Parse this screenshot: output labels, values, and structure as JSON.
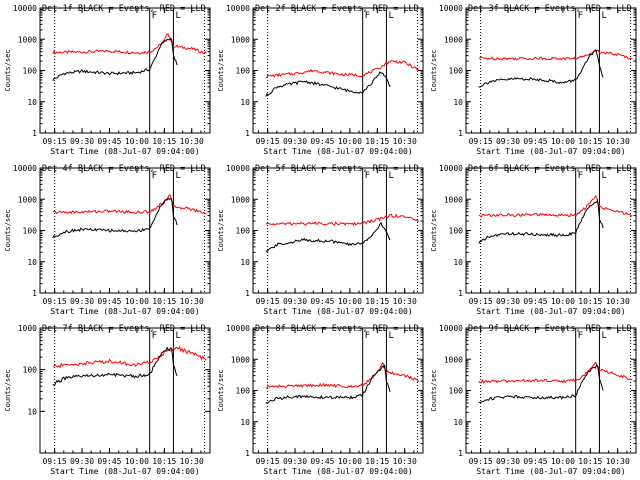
{
  "chart_data": [
    {
      "type": "line",
      "title": "Det 1f BLACK = Events, RED = LLD",
      "xlabel": "Start Time (08-Jul-07 09:04:00)",
      "ylabel": "Counts/sec",
      "xlim": [
        "09:07",
        "10:40"
      ],
      "ylim": [
        1,
        10000
      ],
      "yscale": "log",
      "xticks": [
        "09:15",
        "09:30",
        "09:45",
        "10:00",
        "10:15",
        "10:30"
      ],
      "yticks": [
        "1",
        "10",
        "100",
        "1000",
        "10000"
      ],
      "markers": [
        {
          "x": "09:15",
          "style": "dotted"
        },
        {
          "x": "10:07",
          "style": "solid",
          "label": "F"
        },
        {
          "x": "10:20",
          "style": "solid",
          "label": "L"
        },
        {
          "x": "10:37",
          "style": "dotted"
        }
      ],
      "series": [
        {
          "color": "#ff0000",
          "x": [
            "09:14",
            "09:30",
            "09:45",
            "10:00",
            "10:07",
            "10:12",
            "10:15",
            "10:17",
            "10:20",
            "10:30",
            "10:38"
          ],
          "values": [
            380,
            390,
            420,
            370,
            390,
            600,
            900,
            1600,
            600,
            500,
            350
          ]
        },
        {
          "color": "#000000",
          "x": [
            "09:14",
            "09:20",
            "09:30",
            "09:45",
            "10:00",
            "10:07",
            "10:10",
            "10:13",
            "10:16",
            "10:19",
            "10:20",
            "10:22"
          ],
          "values": [
            50,
            80,
            95,
            80,
            85,
            110,
            250,
            650,
            900,
            1100,
            300,
            150
          ]
        }
      ]
    },
    {
      "type": "line",
      "title": "Det 2f BLACK = Events, RED = LLD",
      "xlabel": "Start Time (08-Jul-07 09:04:00)",
      "ylabel": "Counts/sec",
      "xlim": [
        "09:07",
        "10:40"
      ],
      "ylim": [
        1,
        10000
      ],
      "yscale": "log",
      "xticks": [
        "09:15",
        "09:30",
        "09:45",
        "10:00",
        "10:15",
        "10:30"
      ],
      "yticks": [
        "1",
        "10",
        "100",
        "1000",
        "10000"
      ],
      "markers": [
        {
          "x": "09:15",
          "style": "dotted"
        },
        {
          "x": "10:07",
          "style": "solid",
          "label": "F"
        },
        {
          "x": "10:20",
          "style": "solid",
          "label": "L"
        },
        {
          "x": "10:37",
          "style": "dotted"
        }
      ],
      "series": [
        {
          "color": "#ff0000",
          "x": [
            "09:14",
            "09:30",
            "09:40",
            "09:55",
            "10:07",
            "10:15",
            "10:22",
            "10:30",
            "10:38"
          ],
          "values": [
            65,
            80,
            100,
            75,
            70,
            110,
            200,
            180,
            100
          ]
        },
        {
          "color": "#000000",
          "x": [
            "09:14",
            "09:20",
            "09:35",
            "09:50",
            "10:00",
            "10:07",
            "10:12",
            "10:17",
            "10:20",
            "10:22"
          ],
          "values": [
            15,
            30,
            45,
            30,
            22,
            20,
            40,
            90,
            60,
            30
          ]
        }
      ]
    },
    {
      "type": "line",
      "title": "Det 3f BLACK = Events, RED = LLD",
      "xlabel": "Start Time (08-Jul-07 09:04:00)",
      "ylabel": "Counts/sec",
      "xlim": [
        "09:07",
        "10:40"
      ],
      "ylim": [
        1,
        10000
      ],
      "yscale": "log",
      "xticks": [
        "09:15",
        "09:30",
        "09:45",
        "10:00",
        "10:15",
        "10:30"
      ],
      "yticks": [
        "1",
        "10",
        "100",
        "1000",
        "10000"
      ],
      "markers": [
        {
          "x": "09:15",
          "style": "dotted"
        },
        {
          "x": "10:07",
          "style": "solid",
          "label": "F"
        },
        {
          "x": "10:20",
          "style": "solid",
          "label": "L"
        },
        {
          "x": "10:37",
          "style": "dotted"
        }
      ],
      "series": [
        {
          "color": "#ff0000",
          "x": [
            "09:14",
            "09:30",
            "09:45",
            "10:00",
            "10:07",
            "10:13",
            "10:17",
            "10:20",
            "10:30",
            "10:38"
          ],
          "values": [
            250,
            240,
            245,
            240,
            245,
            300,
            450,
            400,
            320,
            240
          ]
        },
        {
          "color": "#000000",
          "x": [
            "09:14",
            "09:20",
            "09:35",
            "09:50",
            "10:00",
            "10:07",
            "10:11",
            "10:15",
            "10:18",
            "10:20",
            "10:22"
          ],
          "values": [
            30,
            45,
            55,
            50,
            40,
            50,
            120,
            300,
            420,
            150,
            60
          ]
        }
      ]
    },
    {
      "type": "line",
      "title": "Det 4f BLACK = Events, RED = LLD",
      "xlabel": "Start Time (08-Jul-07 09:04:00)",
      "ylabel": "Counts/sec",
      "xlim": [
        "09:07",
        "10:40"
      ],
      "ylim": [
        1,
        10000
      ],
      "yscale": "log",
      "xticks": [
        "09:15",
        "09:30",
        "09:45",
        "10:00",
        "10:15",
        "10:30"
      ],
      "yticks": [
        "1",
        "10",
        "100",
        "1000",
        "10000"
      ],
      "markers": [
        {
          "x": "09:15",
          "style": "dotted"
        },
        {
          "x": "10:07",
          "style": "solid",
          "label": "F"
        },
        {
          "x": "10:20",
          "style": "solid",
          "label": "L"
        },
        {
          "x": "10:37",
          "style": "dotted"
        }
      ],
      "series": [
        {
          "color": "#ff0000",
          "x": [
            "09:14",
            "09:30",
            "09:45",
            "10:00",
            "10:07",
            "10:12",
            "10:15",
            "10:18",
            "10:20",
            "10:30",
            "10:38"
          ],
          "values": [
            380,
            390,
            420,
            380,
            400,
            600,
            900,
            1300,
            600,
            480,
            350
          ]
        },
        {
          "color": "#000000",
          "x": [
            "09:14",
            "09:20",
            "09:30",
            "09:45",
            "10:00",
            "10:07",
            "10:10",
            "10:13",
            "10:16",
            "10:19",
            "10:20",
            "10:22"
          ],
          "values": [
            60,
            90,
            110,
            100,
            95,
            120,
            250,
            650,
            900,
            1100,
            300,
            150
          ]
        }
      ]
    },
    {
      "type": "line",
      "title": "Det 5f BLACK = Events, RED = LLD",
      "xlabel": "Start Time (08-Jul-07 09:04:00)",
      "ylabel": "Counts/sec",
      "xlim": [
        "09:07",
        "10:40"
      ],
      "ylim": [
        1,
        10000
      ],
      "yscale": "log",
      "xticks": [
        "09:15",
        "09:30",
        "09:45",
        "10:00",
        "10:15",
        "10:30"
      ],
      "yticks": [
        "1",
        "10",
        "100",
        "1000",
        "10000"
      ],
      "markers": [
        {
          "x": "09:15",
          "style": "dotted"
        },
        {
          "x": "10:07",
          "style": "solid",
          "label": "F"
        },
        {
          "x": "10:20",
          "style": "solid",
          "label": "L"
        },
        {
          "x": "10:37",
          "style": "dotted"
        }
      ],
      "series": [
        {
          "color": "#ff0000",
          "x": [
            "09:14",
            "09:30",
            "09:45",
            "10:00",
            "10:07",
            "10:15",
            "10:22",
            "10:30",
            "10:38"
          ],
          "values": [
            160,
            165,
            170,
            160,
            170,
            220,
            300,
            280,
            200
          ]
        },
        {
          "color": "#000000",
          "x": [
            "09:14",
            "09:20",
            "09:35",
            "09:50",
            "10:00",
            "10:07",
            "10:12",
            "10:17",
            "10:20",
            "10:22"
          ],
          "values": [
            20,
            35,
            50,
            45,
            35,
            40,
            70,
            160,
            90,
            50
          ]
        }
      ]
    },
    {
      "type": "line",
      "title": "Det 6f BLACK = Events, RED = LLD",
      "xlabel": "Start Time (08-Jul-07 09:04:00)",
      "ylabel": "Counts/sec",
      "xlim": [
        "09:07",
        "10:40"
      ],
      "ylim": [
        1,
        10000
      ],
      "yscale": "log",
      "xticks": [
        "09:15",
        "09:30",
        "09:45",
        "10:00",
        "10:15",
        "10:30"
      ],
      "yticks": [
        "1",
        "10",
        "100",
        "1000",
        "10000"
      ],
      "markers": [
        {
          "x": "09:15",
          "style": "dotted"
        },
        {
          "x": "10:07",
          "style": "solid",
          "label": "F"
        },
        {
          "x": "10:20",
          "style": "solid",
          "label": "L"
        },
        {
          "x": "10:37",
          "style": "dotted"
        }
      ],
      "series": [
        {
          "color": "#ff0000",
          "x": [
            "09:14",
            "09:30",
            "09:45",
            "10:00",
            "10:07",
            "10:12",
            "10:15",
            "10:18",
            "10:20",
            "10:30",
            "10:38"
          ],
          "values": [
            300,
            310,
            320,
            300,
            320,
            500,
            800,
            1300,
            550,
            400,
            300
          ]
        },
        {
          "color": "#000000",
          "x": [
            "09:14",
            "09:20",
            "09:30",
            "09:45",
            "10:00",
            "10:07",
            "10:10",
            "10:13",
            "10:16",
            "10:19",
            "10:20",
            "10:22"
          ],
          "values": [
            40,
            65,
            80,
            75,
            70,
            85,
            200,
            450,
            700,
            900,
            250,
            120
          ]
        }
      ]
    },
    {
      "type": "line",
      "title": "Det 7f BLACK = Events, RED = LLD",
      "xlabel": "Start Time (08-Jul-07 09:04:00)",
      "ylabel": "Counts/sec",
      "xlim": [
        "09:07",
        "10:40"
      ],
      "ylim": [
        1,
        1000
      ],
      "yscale": "log",
      "xticks": [
        "09:15",
        "09:30",
        "09:45",
        "10:00",
        "10:15",
        "10:30"
      ],
      "yticks": [
        "10",
        "100",
        "1000"
      ],
      "markers": [
        {
          "x": "09:15",
          "style": "dotted"
        },
        {
          "x": "10:07",
          "style": "solid",
          "label": "F"
        },
        {
          "x": "10:20",
          "style": "solid",
          "label": "L"
        },
        {
          "x": "10:37",
          "style": "dotted"
        }
      ],
      "series": [
        {
          "color": "#ff0000",
          "x": [
            "09:14",
            "09:30",
            "09:45",
            "10:00",
            "10:07",
            "10:12",
            "10:17",
            "10:22",
            "10:30",
            "10:38"
          ],
          "values": [
            120,
            140,
            160,
            130,
            150,
            200,
            300,
            330,
            250,
            170
          ]
        },
        {
          "color": "#000000",
          "x": [
            "09:14",
            "09:20",
            "09:30",
            "09:45",
            "10:00",
            "10:07",
            "10:10",
            "10:13",
            "10:16",
            "10:19",
            "10:20",
            "10:22"
          ],
          "values": [
            45,
            60,
            70,
            75,
            70,
            80,
            130,
            220,
            300,
            330,
            120,
            70
          ]
        }
      ]
    },
    {
      "type": "line",
      "title": "Det 8f BLACK = Events, RED = LLD",
      "xlabel": "Start Time (08-Jul-07 09:04:00)",
      "ylabel": "Counts/sec",
      "xlim": [
        "09:07",
        "10:40"
      ],
      "ylim": [
        1,
        10000
      ],
      "yscale": "log",
      "xticks": [
        "09:15",
        "09:30",
        "09:45",
        "10:00",
        "10:15",
        "10:30"
      ],
      "yticks": [
        "1",
        "10",
        "100",
        "1000",
        "10000"
      ],
      "markers": [
        {
          "x": "09:15",
          "style": "dotted"
        },
        {
          "x": "10:07",
          "style": "solid",
          "label": "F"
        },
        {
          "x": "10:20",
          "style": "solid",
          "label": "L"
        },
        {
          "x": "10:37",
          "style": "dotted"
        }
      ],
      "series": [
        {
          "color": "#ff0000",
          "x": [
            "09:14",
            "09:30",
            "09:45",
            "10:00",
            "10:07",
            "10:12",
            "10:15",
            "10:18",
            "10:20",
            "10:30",
            "10:38"
          ],
          "values": [
            130,
            140,
            150,
            135,
            150,
            250,
            400,
            700,
            400,
            300,
            200
          ]
        },
        {
          "color": "#000000",
          "x": [
            "09:14",
            "09:20",
            "09:30",
            "09:45",
            "10:00",
            "10:07",
            "10:10",
            "10:13",
            "10:16",
            "10:19",
            "10:20",
            "10:22"
          ],
          "values": [
            40,
            55,
            65,
            60,
            60,
            70,
            150,
            300,
            450,
            600,
            200,
            90
          ]
        }
      ]
    },
    {
      "type": "line",
      "title": "Det 9f BLACK = Events, RED = LLD",
      "xlabel": "Start Time (08-Jul-07 09:04:00)",
      "ylabel": "Counts/sec",
      "xlim": [
        "09:07",
        "10:40"
      ],
      "ylim": [
        1,
        10000
      ],
      "yscale": "log",
      "xticks": [
        "09:15",
        "09:30",
        "09:45",
        "10:00",
        "10:15",
        "10:30"
      ],
      "yticks": [
        "1",
        "10",
        "100",
        "1000",
        "10000"
      ],
      "markers": [
        {
          "x": "09:15",
          "style": "dotted"
        },
        {
          "x": "10:07",
          "style": "solid",
          "label": "F"
        },
        {
          "x": "10:20",
          "style": "solid",
          "label": "L"
        },
        {
          "x": "10:37",
          "style": "dotted"
        }
      ],
      "series": [
        {
          "color": "#ff0000",
          "x": [
            "09:14",
            "09:30",
            "09:45",
            "10:00",
            "10:07",
            "10:12",
            "10:15",
            "10:18",
            "10:20",
            "10:30",
            "10:38"
          ],
          "values": [
            190,
            200,
            210,
            200,
            210,
            320,
            500,
            800,
            450,
            320,
            220
          ]
        },
        {
          "color": "#000000",
          "x": [
            "09:14",
            "09:20",
            "09:30",
            "09:45",
            "10:00",
            "10:07",
            "10:10",
            "10:13",
            "10:16",
            "10:19",
            "10:20",
            "10:22"
          ],
          "values": [
            40,
            55,
            65,
            60,
            60,
            70,
            160,
            330,
            480,
            650,
            220,
            100
          ]
        }
      ]
    }
  ]
}
